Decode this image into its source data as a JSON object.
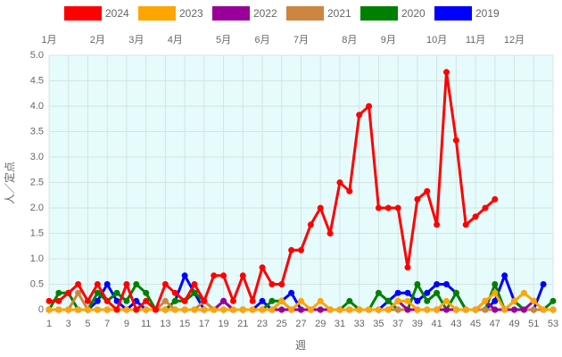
{
  "chart_data": {
    "type": "line",
    "x_label": "週",
    "y_label": "人／定点",
    "x": [
      1,
      2,
      3,
      4,
      5,
      6,
      7,
      8,
      9,
      10,
      11,
      12,
      13,
      14,
      15,
      16,
      17,
      18,
      19,
      20,
      21,
      22,
      23,
      24,
      25,
      26,
      27,
      28,
      29,
      30,
      31,
      32,
      33,
      34,
      35,
      36,
      37,
      38,
      39,
      40,
      41,
      42,
      43,
      44,
      45,
      46,
      47,
      48,
      49,
      50,
      51,
      52,
      53
    ],
    "xlim": [
      1,
      53
    ],
    "xticks": [
      1,
      3,
      5,
      7,
      9,
      11,
      13,
      15,
      17,
      19,
      21,
      23,
      25,
      27,
      29,
      31,
      33,
      35,
      37,
      39,
      41,
      43,
      45,
      47,
      49,
      51,
      53
    ],
    "ylim": [
      0,
      5
    ],
    "yticks": [
      0,
      0.5,
      {
        "value": 1,
        "label": "1.0"
      },
      1.5,
      {
        "value": 2,
        "label": "2.0"
      },
      2.5,
      {
        "value": 3,
        "label": "3.0"
      },
      3.5,
      {
        "value": 4,
        "label": "4.0"
      },
      4.5,
      {
        "value": 5,
        "label": "5.0"
      }
    ],
    "grid": true,
    "month_labels": [
      {
        "label": "1月",
        "week": 1
      },
      {
        "label": "2月",
        "week": 6
      },
      {
        "label": "3月",
        "week": 10
      },
      {
        "label": "4月",
        "week": 14
      },
      {
        "label": "5月",
        "week": 19
      },
      {
        "label": "6月",
        "week": 23
      },
      {
        "label": "7月",
        "week": 27
      },
      {
        "label": "8月",
        "week": 32
      },
      {
        "label": "9月",
        "week": 36
      },
      {
        "label": "10月",
        "week": 41
      },
      {
        "label": "11月",
        "week": 45
      },
      {
        "label": "12月",
        "week": 49
      }
    ],
    "series": [
      {
        "name": "2024",
        "color": "#ff0000",
        "values": [
          0.17,
          0.17,
          0.33,
          0.5,
          0.17,
          0.5,
          0.17,
          0,
          0.5,
          0,
          0.17,
          0,
          0.5,
          0.33,
          0.17,
          0.5,
          0.17,
          0.67,
          0.67,
          0.17,
          0.67,
          0.17,
          0.83,
          0.5,
          0.5,
          1.17,
          1.17,
          1.67,
          2.0,
          1.5,
          2.5,
          2.33,
          3.83,
          4.0,
          2.0,
          2.0,
          2.0,
          0.83,
          2.17,
          2.33,
          1.67,
          4.67,
          3.33,
          1.67,
          1.83,
          2.0,
          2.17,
          null,
          null,
          null,
          null,
          null,
          null
        ]
      },
      {
        "name": "2023",
        "color": "#ffa500",
        "values": [
          0,
          0,
          0,
          0,
          0,
          0,
          0,
          0,
          0,
          0,
          0,
          0,
          0,
          0,
          0,
          0,
          0,
          0,
          0,
          0,
          0,
          0,
          0,
          0,
          0.17,
          0,
          0.17,
          0,
          0.17,
          0,
          0,
          0,
          0,
          0,
          0,
          0,
          0.17,
          0.17,
          0,
          0,
          0,
          0.17,
          0,
          0,
          0,
          0.17,
          0.33,
          0,
          0.17,
          0.33,
          0.17,
          0,
          0
        ]
      },
      {
        "name": "2022",
        "color": "#990099",
        "values": [
          0,
          0,
          0,
          0,
          0,
          0,
          0,
          0,
          0,
          0,
          0,
          0,
          0,
          0,
          0,
          0,
          0,
          0,
          0.17,
          0,
          0,
          0,
          0,
          0,
          0,
          0,
          0,
          0,
          0,
          0,
          0,
          0,
          0,
          0,
          0,
          0,
          0.17,
          0,
          0,
          0,
          0,
          0,
          0,
          0,
          0,
          0.17,
          0,
          0,
          0,
          0,
          0.17,
          0,
          0
        ]
      },
      {
        "name": "2021",
        "color": "#cd853f",
        "values": [
          0,
          0,
          0,
          0.33,
          0,
          0,
          0,
          0,
          0,
          0,
          0,
          0,
          0.17,
          0,
          0,
          0,
          0.17,
          0,
          0,
          0,
          0,
          0,
          0,
          0,
          0,
          0,
          0,
          0,
          0,
          0,
          0,
          0,
          0,
          0,
          0,
          0,
          0,
          0,
          0,
          0,
          0,
          0,
          0,
          0,
          0,
          0,
          0,
          0,
          0,
          0,
          0,
          0,
          0
        ]
      },
      {
        "name": "2020",
        "color": "#008000",
        "values": [
          0,
          0.33,
          0.33,
          0,
          0,
          0.33,
          0.17,
          0.33,
          0.17,
          0.5,
          0.33,
          0,
          0,
          0.17,
          0.17,
          0.33,
          0.17,
          0,
          0,
          0,
          0,
          0,
          0,
          0.17,
          0.17,
          0,
          0,
          0,
          0,
          0,
          0,
          0.17,
          0,
          0,
          0.33,
          0.17,
          0,
          0,
          0.5,
          0.17,
          0.33,
          0,
          0.33,
          0,
          0,
          0,
          0.5,
          0,
          0.17,
          0,
          0,
          0,
          0.17
        ]
      },
      {
        "name": "2019",
        "color": "#0000ff",
        "values": [
          0,
          0,
          0,
          0,
          0,
          0.17,
          0.5,
          0.17,
          0,
          0.17,
          0,
          0,
          0,
          0.17,
          0.67,
          0.33,
          0,
          0,
          0.17,
          0,
          0,
          0,
          0.17,
          0,
          0.17,
          0.33,
          0,
          0,
          0,
          0,
          0,
          0,
          0,
          0,
          0,
          0.17,
          0.33,
          0.33,
          0.17,
          0.33,
          0.5,
          0.5,
          0.33,
          0,
          0,
          0,
          0.17,
          0.67,
          0.17,
          0,
          0,
          0.5,
          null
        ]
      }
    ]
  }
}
